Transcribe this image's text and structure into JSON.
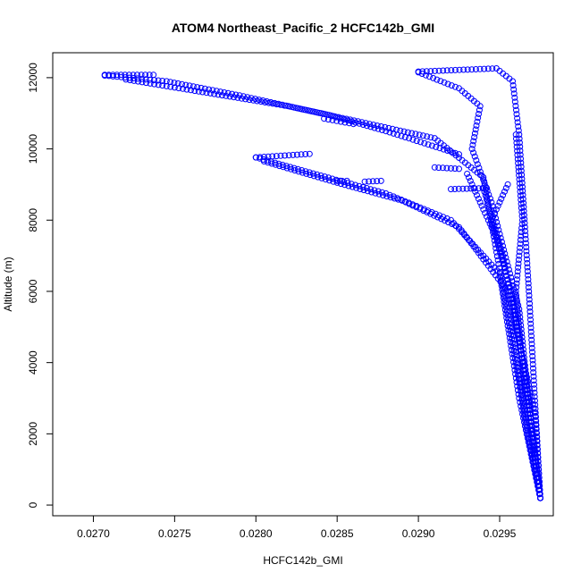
{
  "chart_data": {
    "type": "scatter",
    "title": "ATOM4 Northeast_Pacific_2 HCFC142b_GMI",
    "xlabel": "HCFC142b_GMI",
    "ylabel": "Altitude (m)",
    "xlim": [
      0.02675,
      0.02983
    ],
    "ylim": [
      -300,
      12700
    ],
    "x_ticks": [
      0.027,
      0.0275,
      0.028,
      0.0285,
      0.029,
      0.0295
    ],
    "x_tick_labels": [
      "0.0270",
      "0.0275",
      "0.0280",
      "0.0285",
      "0.0290",
      "0.0295"
    ],
    "y_ticks": [
      0,
      2000,
      4000,
      6000,
      8000,
      10000,
      12000
    ],
    "y_tick_labels": [
      "0",
      "2000",
      "4000",
      "6000",
      "8000",
      "10000",
      "12000"
    ],
    "marker": "open-circle",
    "color": "#0000ff",
    "grid": false,
    "profiles": [
      {
        "x": [
          0.02707,
          0.02737
        ],
        "y": [
          12080,
          12080
        ]
      },
      {
        "x": [
          0.02707,
          0.02745,
          0.0279,
          0.02845,
          0.0288,
          0.02925
        ],
        "y": [
          12060,
          11900,
          11500,
          10950,
          10500,
          9850
        ]
      },
      {
        "x": [
          0.0272,
          0.0276,
          0.0282,
          0.0287,
          0.0291,
          0.0294,
          0.0296,
          0.02975
        ],
        "y": [
          11950,
          11650,
          11200,
          10700,
          10300,
          9200,
          4000,
          200
        ]
      },
      {
        "x": [
          0.02842,
          0.0286
        ],
        "y": [
          10850,
          10700
        ]
      },
      {
        "x": [
          0.028,
          0.02833
        ],
        "y": [
          9760,
          9860
        ]
      },
      {
        "x": [
          0.028,
          0.0284,
          0.0288,
          0.0292,
          0.0295,
          0.02962,
          0.02975
        ],
        "y": [
          9760,
          9250,
          8750,
          8000,
          6500,
          3000,
          200
        ]
      },
      {
        "x": [
          0.02805,
          0.0285,
          0.0289,
          0.02925,
          0.02955,
          0.02965,
          0.02975
        ],
        "y": [
          9650,
          9050,
          8550,
          7800,
          6000,
          2500,
          200
        ]
      },
      {
        "x": [
          0.0285,
          0.02856
        ],
        "y": [
          9100,
          9100
        ]
      },
      {
        "x": [
          0.02867,
          0.02877
        ],
        "y": [
          9080,
          9100
        ]
      },
      {
        "x": [
          0.0292,
          0.02942
        ],
        "y": [
          8870,
          8900
        ]
      },
      {
        "x": [
          0.0291,
          0.02925
        ],
        "y": [
          9480,
          9440
        ]
      },
      {
        "x": [
          0.029,
          0.02948,
          0.02958,
          0.02962,
          0.02968,
          0.02975
        ],
        "y": [
          12170,
          12260,
          11900,
          10400,
          6000,
          200
        ]
      },
      {
        "x": [
          0.029,
          0.02925,
          0.02938,
          0.02933,
          0.02945,
          0.02962,
          0.0297,
          0.02975
        ],
        "y": [
          12150,
          11700,
          11200,
          10000,
          8500,
          5500,
          2000,
          200
        ]
      },
      {
        "x": [
          0.0294,
          0.02952,
          0.0296,
          0.02972,
          0.02975
        ],
        "y": [
          8900,
          7000,
          5000,
          2500,
          200
        ]
      },
      {
        "x": [
          0.0293,
          0.02948,
          0.02958,
          0.02968,
          0.02975
        ],
        "y": [
          9300,
          7500,
          5800,
          3000,
          200
        ]
      },
      {
        "x": [
          0.0296,
          0.02964,
          0.0296,
          0.02966,
          0.02975
        ],
        "y": [
          10400,
          8000,
          6000,
          3000,
          200
        ]
      },
      {
        "x": [
          0.02955,
          0.02945,
          0.02957,
          0.02968,
          0.02975
        ],
        "y": [
          9000,
          8000,
          6000,
          2800,
          200
        ]
      }
    ]
  }
}
